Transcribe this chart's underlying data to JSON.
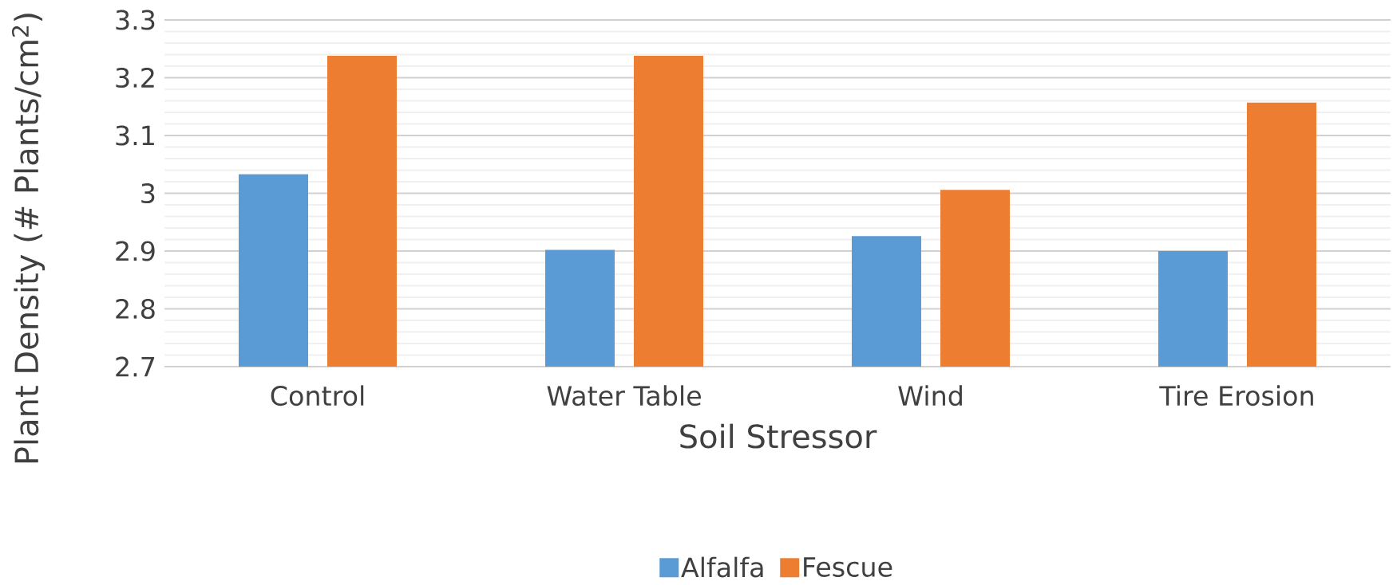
{
  "chart_data": {
    "type": "bar",
    "xlabel": "Soil Stressor",
    "ylabel": "Plant Density (# Plants/cm$^{2}$)",
    "categories": [
      "Control",
      "Water Table",
      "Wind",
      "Tire Erosion"
    ],
    "series": [
      {
        "name": "Alfalfa",
        "color": "#5b9bd5",
        "values": [
          3.033,
          2.902,
          2.926,
          2.9
        ]
      },
      {
        "name": "Fescue",
        "color": "#ed7d31",
        "values": [
          3.238,
          3.238,
          3.006,
          3.157
        ]
      }
    ],
    "ylim": [
      2.7,
      3.3
    ],
    "yticks": [
      2.7,
      2.8,
      2.9,
      3,
      3.1,
      3.2,
      3.3
    ],
    "grid": "y",
    "legend": "bottom"
  }
}
